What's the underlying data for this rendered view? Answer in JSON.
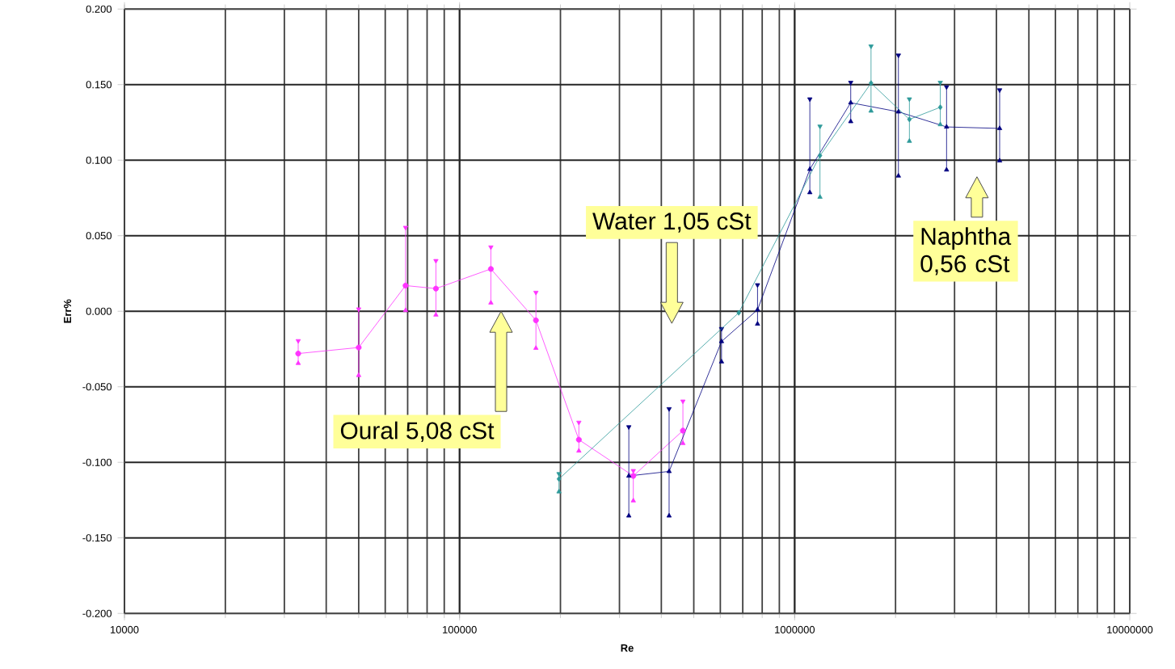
{
  "chart_data": {
    "type": "line",
    "xlabel": "Re",
    "ylabel": "Err%",
    "log": "x",
    "grid": true,
    "xlim": [
      10000,
      10000000
    ],
    "xticks": [
      10000,
      100000,
      1000000,
      10000000
    ],
    "ylim": [
      -0.2,
      0.2
    ],
    "yticks": [
      {
        "value": -0.2,
        "label": "-0.200"
      },
      {
        "value": -0.15,
        "label": "-0.150"
      },
      {
        "value": -0.1,
        "label": "-0.100"
      },
      {
        "value": -0.05,
        "label": "-0.050"
      },
      {
        "value": 0,
        "label": "0.000"
      },
      {
        "value": 0.05,
        "label": "0.050"
      },
      {
        "value": 0.1,
        "label": "0.100"
      },
      {
        "value": 0.15,
        "label": "0.150"
      },
      {
        "value": 0.2,
        "label": "0.200"
      }
    ],
    "series": [
      {
        "color": "#ff33ff",
        "marker": "circle",
        "x": [
          33000,
          50000,
          69000,
          85000,
          124000,
          169000,
          227000,
          330000,
          464000
        ],
        "values": [
          -0.028,
          -0.024,
          0.017,
          0.015,
          0.028,
          -0.006,
          -0.085,
          -0.109,
          -0.079
        ],
        "errors": [
          [
            -0.034,
            -0.02
          ],
          [
            -0.042,
            0.001
          ],
          [
            0.001,
            0.055
          ],
          [
            -0.002,
            0.033
          ],
          [
            0.006,
            0.042
          ],
          [
            -0.024,
            0.012
          ],
          [
            -0.092,
            -0.074
          ],
          [
            -0.125,
            -0.106
          ],
          [
            -0.087,
            -0.06
          ]
        ]
      },
      {
        "color": "#000080",
        "marker": "triangle",
        "x": [
          320000,
          422000,
          605000,
          775000,
          1110000,
          1470000,
          2040000,
          2840000,
          4090000
        ],
        "values": [
          -0.109,
          -0.106,
          -0.02,
          0.001,
          0.094,
          0.138,
          0.132,
          0.122,
          0.121
        ],
        "errors": [
          [
            -0.135,
            -0.077
          ],
          [
            -0.135,
            -0.065
          ],
          [
            -0.033,
            -0.012
          ],
          [
            -0.008,
            0.017
          ],
          [
            0.079,
            0.14
          ],
          [
            0.126,
            0.151
          ],
          [
            0.09,
            0.169
          ],
          [
            0.094,
            0.148
          ],
          [
            0.1,
            0.146
          ]
        ]
      },
      {
        "color": "#2e9a9a",
        "marker": "diamond",
        "x": [
          198000,
          681000,
          1190000,
          1690000,
          2200000,
          2720000
        ],
        "values": [
          -0.111,
          -0.001,
          0.103,
          0.151,
          0.127,
          0.135
        ],
        "errors": [
          [
            -0.119,
            -0.108
          ],
          null,
          [
            0.076,
            0.122
          ],
          [
            0.133,
            0.175
          ],
          [
            0.113,
            0.14
          ],
          [
            0.124,
            0.151
          ]
        ]
      }
    ],
    "annotations": [
      "Oural 5,08 cSt",
      "Water 1,05 cSt",
      "Naphtha 0,56 cSt"
    ]
  }
}
